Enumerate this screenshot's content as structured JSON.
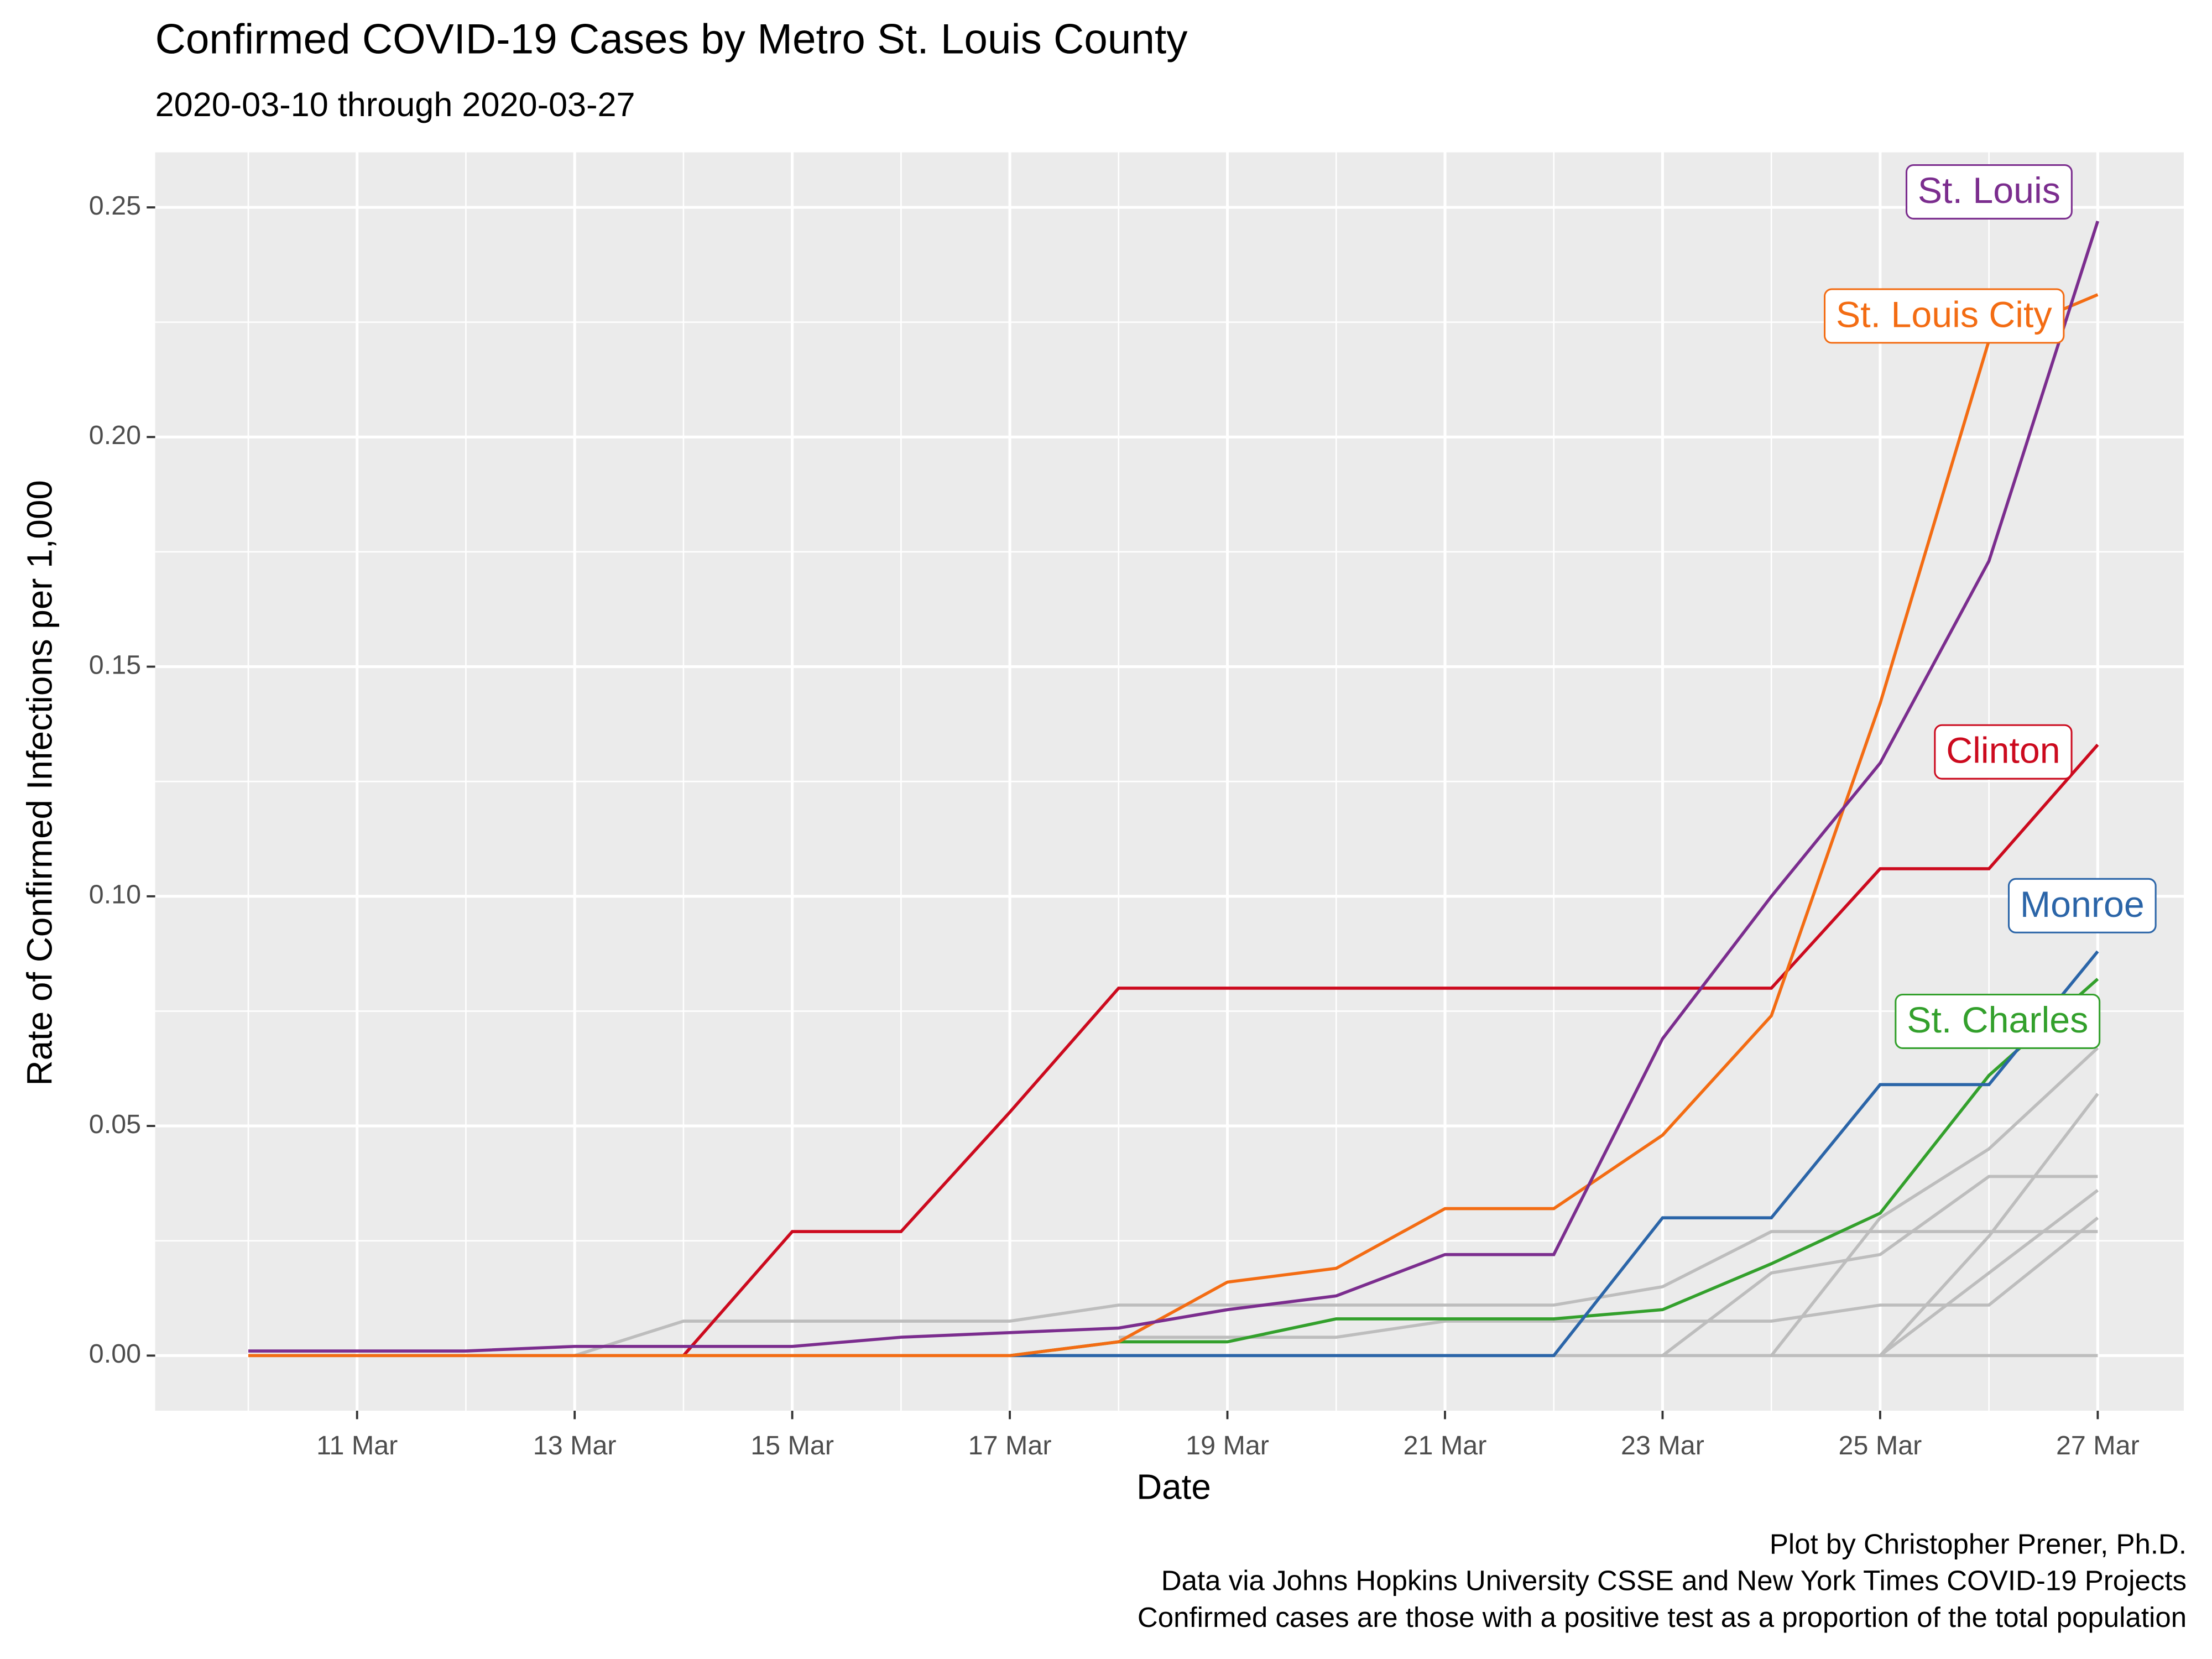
{
  "chart_data": {
    "type": "line",
    "title": "Confirmed COVID-19 Cases by Metro St. Louis County",
    "subtitle": "2020-03-10 through 2020-03-27",
    "xlabel": "Date",
    "ylabel": "Rate of Confirmed Infections per 1,000",
    "caption": [
      "Plot by Christopher Prener, Ph.D.",
      "Data via Johns Hopkins University CSSE and New York Times COVID-19 Projects",
      "Confirmed cases are those with a positive test as a proportion of the total population"
    ],
    "x": [
      "10 Mar",
      "11 Mar",
      "12 Mar",
      "13 Mar",
      "14 Mar",
      "15 Mar",
      "16 Mar",
      "17 Mar",
      "18 Mar",
      "19 Mar",
      "20 Mar",
      "21 Mar",
      "22 Mar",
      "23 Mar",
      "24 Mar",
      "25 Mar",
      "26 Mar",
      "27 Mar"
    ],
    "xticks": [
      "11 Mar",
      "13 Mar",
      "15 Mar",
      "17 Mar",
      "19 Mar",
      "21 Mar",
      "23 Mar",
      "25 Mar",
      "27 Mar"
    ],
    "ylim": [
      -0.012,
      0.25
    ],
    "yticks": [
      {
        "value": 0,
        "label": "0.00"
      },
      {
        "value": 0.05,
        "label": "0.05"
      },
      {
        "value": 0.1,
        "label": "0.10"
      },
      {
        "value": 0.15,
        "label": "0.15"
      },
      {
        "value": 0.2,
        "label": "0.20"
      },
      0.25
    ],
    "grid": true,
    "series": [
      {
        "color": "#bdbdbd",
        "values": [
          0,
          0,
          0,
          0,
          0,
          0,
          0,
          0,
          0,
          0,
          0,
          0,
          0,
          0,
          0,
          0,
          0,
          0
        ]
      },
      {
        "color": "#bdbdbd",
        "values": [
          null,
          null,
          null,
          0,
          0.0075,
          0.0075,
          0.0075,
          0.0075,
          0.011,
          0.011,
          0.011,
          0.011,
          0.011,
          0.015,
          0.027,
          0.027,
          0.027,
          0.027
        ]
      },
      {
        "color": "#bdbdbd",
        "values": [
          null,
          null,
          null,
          null,
          null,
          null,
          null,
          null,
          0.004,
          0.004,
          0.004,
          0.0075,
          0.0075,
          0.0075,
          0.0075,
          0.011,
          0.011,
          0.03
        ]
      },
      {
        "color": "#bdbdbd",
        "values": [
          null,
          null,
          null,
          null,
          null,
          null,
          null,
          null,
          null,
          null,
          null,
          null,
          null,
          0,
          0.018,
          0.022,
          0.039,
          0.039
        ]
      },
      {
        "color": "#bdbdbd",
        "values": [
          null,
          null,
          null,
          null,
          null,
          null,
          null,
          null,
          null,
          null,
          null,
          null,
          null,
          null,
          0,
          0.03,
          0.045,
          0.067
        ]
      },
      {
        "color": "#bdbdbd",
        "values": [
          null,
          null,
          null,
          null,
          null,
          null,
          null,
          null,
          null,
          null,
          null,
          null,
          null,
          null,
          null,
          0,
          0.026,
          0.057
        ]
      },
      {
        "color": "#bdbdbd",
        "values": [
          null,
          null,
          null,
          null,
          null,
          null,
          null,
          null,
          null,
          null,
          null,
          null,
          null,
          null,
          null,
          0,
          0.018,
          0.036
        ]
      },
      {
        "name": "St. Charles",
        "color": "#33a02c",
        "values": [
          null,
          null,
          null,
          null,
          null,
          null,
          null,
          0,
          0.003,
          0.003,
          0.008,
          0.008,
          0.008,
          0.01,
          0.02,
          0.031,
          0.061,
          0.082
        ]
      },
      {
        "name": "Monroe",
        "color": "#2b65a8",
        "values": [
          null,
          null,
          null,
          null,
          null,
          null,
          null,
          0,
          0,
          0,
          0,
          0,
          0,
          0.03,
          0.03,
          0.059,
          0.059,
          0.088
        ]
      },
      {
        "name": "Clinton",
        "color": "#cc0a1e",
        "values": [
          null,
          null,
          null,
          null,
          0,
          0.027,
          0.027,
          0.053,
          0.08,
          0.08,
          0.08,
          0.08,
          0.08,
          0.08,
          0.08,
          0.106,
          0.106,
          0.133
        ]
      },
      {
        "name": "St. Louis City",
        "color": "#f36c13",
        "values": [
          0,
          0,
          0,
          0,
          0,
          0,
          0,
          0,
          0.003,
          0.016,
          0.019,
          0.032,
          0.032,
          0.048,
          0.074,
          0.142,
          0.221,
          0.231
        ]
      },
      {
        "name": "St. Louis",
        "color": "#7b2d8e",
        "values": [
          0.001,
          0.001,
          0.001,
          0.002,
          0.002,
          0.002,
          0.004,
          0.005,
          0.006,
          0.01,
          0.013,
          0.022,
          0.022,
          0.069,
          0.1,
          0.129,
          0.173,
          0.247
        ]
      }
    ]
  }
}
